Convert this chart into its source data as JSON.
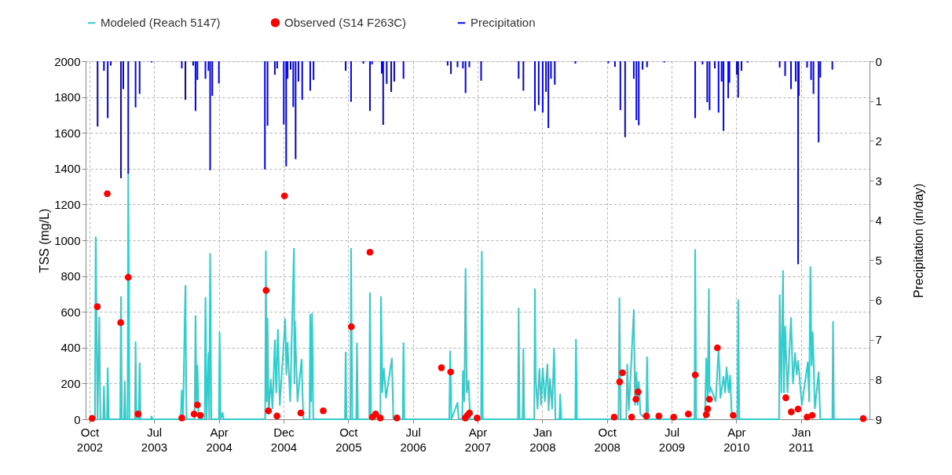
{
  "chart_data": {
    "type": "line",
    "ylabel": "TSS (mg/L)",
    "y2label": "Precipitation (in/day)",
    "xlim": [
      "2002-10-01",
      "2011-10-02"
    ],
    "xticks": [
      {
        "value": "2002-10-01",
        "label": "Oct\n2002"
      },
      {
        "value": "2003-07-01",
        "label": "Jul\n2003"
      },
      {
        "value": "2004-04-01",
        "label": "Apr\n2004"
      },
      {
        "value": "2004-12-31",
        "label": "Dec\n2004"
      },
      {
        "value": "2005-10-01",
        "label": "Oct\n2005"
      },
      {
        "value": "2006-07-02",
        "label": "Jul\n2006"
      },
      {
        "value": "2007-04-02",
        "label": "Apr\n2007"
      },
      {
        "value": "2008-01-01",
        "label": "Jan\n2008"
      },
      {
        "value": "2008-10-01",
        "label": "Oct\n2008"
      },
      {
        "value": "2009-07-02",
        "label": "Jul\n2009"
      },
      {
        "value": "2010-04-02",
        "label": "Apr\n2010"
      },
      {
        "value": "2011-01-01",
        "label": "Jan\n2011"
      }
    ],
    "ylim": [
      0,
      2000
    ],
    "yticks": [
      0,
      200,
      400,
      600,
      800,
      1000,
      1200,
      1400,
      1600,
      1800,
      2000
    ],
    "y2lim": [
      9,
      0
    ],
    "y2ticks": [
      0,
      1,
      2,
      3,
      4,
      5,
      6,
      7,
      8,
      9
    ],
    "grid": true,
    "legend": "top",
    "series": [
      {
        "name": "Modeled (Reach 5147)",
        "color": "#33cccc",
        "marker": "none",
        "line_style": "solid",
        "x": [
          "2002-10-01",
          "2002-10-24",
          "2002-10-27",
          "2002-11-04",
          "2002-11-11",
          "2002-11-16",
          "2002-11-28",
          "2002-12-01",
          "2002-12-05",
          "2002-12-14",
          "2002-12-17",
          "2002-12-21",
          "2003-02-08",
          "2003-02-11",
          "2003-02-15",
          "2003-02-24",
          "2003-02-27",
          "2003-03-03",
          "2003-03-11",
          "2003-03-14",
          "2003-03-19",
          "2003-04-11",
          "2003-04-14",
          "2003-04-18",
          "2003-04-28",
          "2003-05-01",
          "2003-05-05",
          "2003-06-18",
          "2003-06-21",
          "2003-06-25",
          "2003-10-22",
          "2003-10-27",
          "2003-11-01",
          "2003-11-11",
          "2003-11-16",
          "2003-12-20",
          "2003-12-24",
          "2003-12-28",
          "2004-01-01",
          "2004-01-06",
          "2004-02-01",
          "2004-02-04",
          "2004-02-09",
          "2004-02-17",
          "2004-02-20",
          "2004-02-24",
          "2004-02-29",
          "2004-04-01",
          "2004-04-04",
          "2004-04-08",
          "2004-04-17",
          "2004-04-20",
          "2004-10-14",
          "2004-10-17",
          "2004-10-21",
          "2004-10-24",
          "2004-10-29",
          "2004-11-07",
          "2004-11-14",
          "2004-11-24",
          "2004-11-30",
          "2004-12-07",
          "2004-12-15",
          "2005-01-07",
          "2005-01-12",
          "2005-01-17",
          "2005-01-28",
          "2005-02-13",
          "2005-02-15",
          "2005-02-17",
          "2005-02-28",
          "2005-03-17",
          "2005-03-25",
          "2005-04-20",
          "2005-04-23",
          "2005-04-27",
          "2005-05-01",
          "2005-05-06",
          "2005-09-17",
          "2005-09-20",
          "2005-09-24",
          "2005-10-10",
          "2005-10-13",
          "2005-10-18",
          "2005-11-04",
          "2005-11-07",
          "2005-11-11",
          "2005-12-29",
          "2006-01-01",
          "2006-01-05",
          "2006-02-14",
          "2006-02-17",
          "2006-02-22",
          "2006-03-01",
          "2006-03-10",
          "2006-04-04",
          "2006-04-10",
          "2006-05-20",
          "2006-05-23",
          "2006-05-27",
          "2006-12-03",
          "2006-12-07",
          "2006-12-12",
          "2007-01-07",
          "2007-01-12",
          "2007-01-27",
          "2007-01-30",
          "2007-02-05",
          "2007-02-10",
          "2007-02-15",
          "2007-02-23",
          "2007-03-01",
          "2007-04-17",
          "2007-04-20",
          "2007-04-24",
          "2007-09-20",
          "2007-09-23",
          "2007-09-27",
          "2007-10-10",
          "2007-10-13",
          "2007-10-17",
          "2007-11-28",
          "2007-12-01",
          "2007-12-04",
          "2007-12-12",
          "2007-12-20",
          "2007-12-27",
          "2008-01-03",
          "2008-01-12",
          "2008-01-23",
          "2008-01-28",
          "2008-02-03",
          "2008-02-12",
          "2008-02-20",
          "2008-02-26",
          "2008-03-14",
          "2008-03-17",
          "2008-03-21",
          "2008-05-20",
          "2008-05-23",
          "2008-05-27",
          "2008-11-19",
          "2008-11-23",
          "2008-11-28",
          "2008-12-22",
          "2008-12-26",
          "2009-01-02",
          "2009-01-23",
          "2009-01-28",
          "2009-02-03",
          "2009-02-08",
          "2009-02-13",
          "2009-02-20",
          "2009-03-17",
          "2009-03-20",
          "2009-03-25",
          "2009-10-07",
          "2009-10-10",
          "2009-10-14",
          "2009-11-20",
          "2009-11-26",
          "2009-12-02",
          "2009-12-07",
          "2009-12-10",
          "2009-12-13",
          "2010-01-05",
          "2010-01-17",
          "2010-01-25",
          "2010-02-07",
          "2010-02-14",
          "2010-02-20",
          "2010-03-01",
          "2010-03-07",
          "2010-03-14",
          "2010-04-07",
          "2010-04-10",
          "2010-04-15",
          "2010-09-30",
          "2010-10-03",
          "2010-10-10",
          "2010-10-17",
          "2010-10-21",
          "2010-10-26",
          "2010-11-05",
          "2010-11-20",
          "2010-11-28",
          "2010-12-07",
          "2010-12-14",
          "2010-12-20",
          "2011-01-05",
          "2011-01-30",
          "2011-02-05",
          "2011-02-10",
          "2011-02-15",
          "2011-02-20",
          "2011-03-01",
          "2011-03-17",
          "2011-03-24",
          "2011-05-14",
          "2011-05-17",
          "2011-05-21",
          "2011-09-30"
        ],
        "values": [
          0,
          0,
          1016,
          0,
          569,
          0,
          0,
          183,
          0,
          0,
          285,
          0,
          0,
          683,
          0,
          0,
          212,
          0,
          0,
          1372,
          0,
          0,
          431,
          0,
          0,
          314,
          0,
          0,
          15,
          0,
          0,
          161,
          20,
          746,
          0,
          0,
          577,
          80,
          300,
          0,
          0,
          679,
          0,
          372,
          0,
          924,
          0,
          0,
          486,
          0,
          36,
          0,
          0,
          939,
          100,
          562,
          30,
          223,
          60,
          442,
          150,
          500,
          80,
          559,
          250,
          428,
          100,
          953,
          200,
          548,
          100,
          333,
          0,
          0,
          584,
          100,
          591,
          0,
          0,
          374,
          0,
          0,
          953,
          0,
          0,
          425,
          0,
          0,
          705,
          0,
          0,
          683,
          150,
          285,
          120,
          340,
          0,
          0,
          425,
          0,
          0,
          380,
          0,
          92,
          0,
          0,
          270,
          100,
          840,
          150,
          216,
          0,
          0,
          936,
          0,
          0,
          618,
          0,
          0,
          391,
          0,
          0,
          727,
          241,
          60,
          282,
          80,
          285,
          100,
          307,
          50,
          226,
          60,
          394,
          0,
          0,
          139,
          0,
          0,
          445,
          0,
          0,
          676,
          0,
          0,
          307,
          50,
          610,
          80,
          263,
          80,
          209,
          30,
          0,
          347,
          0,
          0,
          946,
          0,
          0,
          340,
          100,
          727,
          150,
          180,
          100,
          391,
          120,
          238,
          150,
          289,
          150,
          245,
          20,
          0,
          666,
          0,
          0,
          694,
          150,
          829,
          150,
          518,
          150,
          566,
          200,
          369,
          250,
          326,
          80,
          318,
          100,
          851,
          300,
          486,
          60,
          263,
          0,
          0,
          545,
          0,
          0
        ]
      },
      {
        "name": "Observed (S14 F263C)",
        "type": "scatter",
        "color": "#ff0000",
        "marker": "circle",
        "x": [
          "2002-10-12",
          "2002-11-03",
          "2002-12-15",
          "2003-02-10",
          "2003-03-14",
          "2003-04-25",
          "2003-10-27",
          "2003-12-18",
          "2004-01-01",
          "2004-01-14",
          "2004-10-18",
          "2004-10-28",
          "2004-12-03",
          "2005-01-04",
          "2005-03-14",
          "2005-06-17",
          "2005-10-14",
          "2006-01-01",
          "2006-01-12",
          "2006-01-25",
          "2006-02-14",
          "2006-04-25",
          "2006-10-31",
          "2006-12-09",
          "2007-02-09",
          "2007-02-18",
          "2007-02-27",
          "2007-03-31",
          "2008-11-01",
          "2008-11-24",
          "2008-12-06",
          "2009-01-14",
          "2009-02-01",
          "2009-02-10",
          "2009-03-17",
          "2009-05-09",
          "2009-07-11",
          "2009-09-11",
          "2009-10-10",
          "2009-11-26",
          "2009-12-02",
          "2009-12-09",
          "2010-01-12",
          "2010-03-20",
          "2010-10-29",
          "2010-11-21",
          "2010-12-20",
          "2011-01-27",
          "2011-02-18",
          "2011-09-22"
        ],
        "values": [
          5,
          629,
          1260,
          540,
          793,
          29,
          7,
          29,
          80,
          22,
          720,
          47,
          18,
          1248,
          35,
          47,
          517,
          933,
          12,
          29,
          7,
          7,
          288,
          264,
          7,
          22,
          35,
          7,
          12,
          209,
          260,
          12,
          112,
          153,
          18,
          18,
          12,
          29,
          248,
          26,
          58,
          112,
          399,
          22,
          120,
          41,
          57,
          12,
          22,
          4
        ]
      },
      {
        "name": "Precipitation",
        "type": "bar",
        "axis": "y2",
        "color": "#0000ff",
        "x": [
          "2002-11-04",
          "2002-12-01",
          "2002-12-17",
          "2002-12-30",
          "2003-02-11",
          "2003-02-21",
          "2003-03-14",
          "2003-04-14",
          "2003-05-01",
          "2003-06-21",
          "2003-10-27",
          "2003-11-11",
          "2003-12-14",
          "2003-12-24",
          "2004-01-01",
          "2004-02-04",
          "2004-02-17",
          "2004-02-24",
          "2004-03-04",
          "2004-04-01",
          "2004-10-13",
          "2004-10-24",
          "2004-11-24",
          "2004-12-04",
          "2005-01-01",
          "2005-01-11",
          "2005-01-17",
          "2005-01-30",
          "2005-02-10",
          "2005-02-20",
          "2005-03-04",
          "2005-03-20",
          "2005-04-23",
          "2005-05-07",
          "2005-09-20",
          "2005-10-13",
          "2005-12-04",
          "2006-01-01",
          "2006-01-10",
          "2006-02-20",
          "2006-02-26",
          "2006-03-13",
          "2006-04-01",
          "2006-04-14",
          "2006-05-23",
          "2006-11-26",
          "2006-12-10",
          "2007-01-07",
          "2007-01-30",
          "2007-02-10",
          "2007-02-26",
          "2007-04-17",
          "2007-09-23",
          "2007-10-13",
          "2007-12-01",
          "2007-12-17",
          "2008-01-03",
          "2008-01-17",
          "2008-01-27",
          "2008-02-07",
          "2008-02-23",
          "2008-05-20",
          "2008-10-07",
          "2008-11-04",
          "2008-11-27",
          "2008-12-17",
          "2009-01-23",
          "2009-02-03",
          "2009-02-13",
          "2009-03-01",
          "2009-03-20",
          "2009-06-01",
          "2009-10-10",
          "2009-11-10",
          "2009-11-30",
          "2009-12-10",
          "2010-01-01",
          "2010-01-17",
          "2010-01-30",
          "2010-02-07",
          "2010-02-27",
          "2010-03-04",
          "2010-04-04",
          "2010-04-10",
          "2010-04-24",
          "2010-05-20",
          "2010-10-03",
          "2010-10-26",
          "2010-11-20",
          "2010-12-10",
          "2010-12-20",
          "2010-12-23",
          "2011-01-27",
          "2011-02-13",
          "2011-02-23",
          "2011-03-17",
          "2011-03-24",
          "2011-05-14"
        ],
        "values": [
          1.64,
          0.24,
          1.43,
          0.11,
          2.94,
          0.7,
          2.83,
          1.16,
          0.82,
          0.03,
          0.18,
          0.97,
          0.11,
          1.25,
          0.47,
          0.44,
          0.24,
          2.74,
          0.87,
          0.56,
          2.72,
          1.62,
          0.34,
          0.18,
          1.59,
          2.64,
          0.44,
          0.21,
          1.15,
          2.46,
          0.51,
          0.97,
          0.74,
          0.47,
          0.24,
          1.02,
          0.06,
          1.25,
          0.08,
          0.31,
          1.6,
          0.57,
          0.77,
          0.51,
          0.44,
          0.11,
          0.32,
          0.15,
          0.18,
          0.8,
          0.15,
          0.49,
          0.44,
          0.74,
          1.25,
          1.1,
          1.29,
          0.77,
          1.68,
          0.44,
          0.59,
          0.06,
          0.05,
          0.14,
          1.23,
          1.91,
          0.44,
          1.48,
          1.61,
          0.21,
          0.15,
          0.03,
          1.43,
          0.08,
          1.03,
          1.23,
          0.18,
          1.29,
          0.51,
          1.75,
          0.93,
          0.54,
          0.34,
          0.91,
          0.24,
          0.03,
          0.16,
          0.37,
          0.7,
          0.51,
          5.1,
          0.87,
          0.16,
          0.47,
          0.82,
          2.04,
          0.41,
          0.21
        ]
      }
    ]
  }
}
